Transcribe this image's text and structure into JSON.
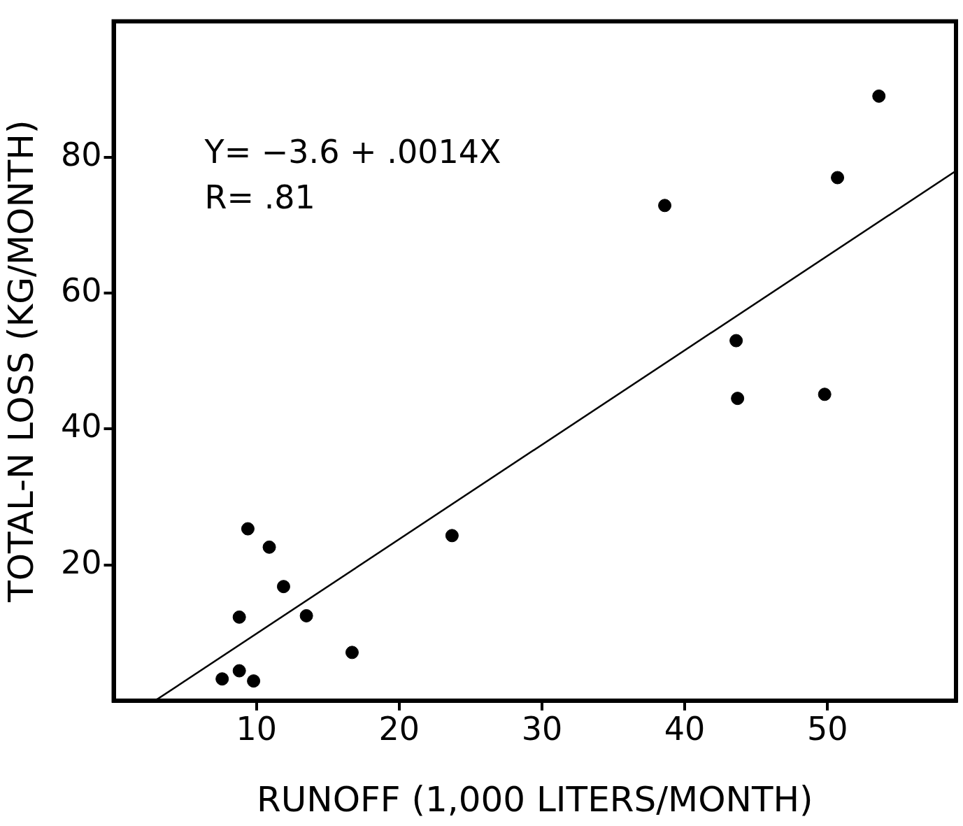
{
  "chart_data": {
    "type": "scatter",
    "xlabel": "RUNOFF (1,000 LITERS/MONTH)",
    "ylabel": "TOTAL-N LOSS (KG/MONTH)",
    "xlim": [
      0,
      59
    ],
    "ylim": [
      0,
      100
    ],
    "xticks": [
      10,
      20,
      30,
      40,
      50
    ],
    "yticks": [
      20,
      40,
      60,
      80
    ],
    "grid": false,
    "legend": false,
    "marker": "circle",
    "annotations": [
      "Y= −3.6 + .0014X",
      "R= .81"
    ],
    "series": [
      {
        "type": "scatter",
        "color": "#000000",
        "x": [
          7.6,
          8.8,
          9.8,
          8.8,
          9.4,
          10.9,
          11.9,
          13.5,
          16.7,
          23.7,
          38.6,
          43.6,
          43.7,
          49.8,
          50.7,
          53.6
        ],
        "values": [
          3.2,
          4.4,
          2.9,
          12.3,
          25.3,
          22.6,
          16.8,
          12.5,
          7.1,
          24.3,
          72.9,
          53,
          44.5,
          45.1,
          77,
          89
        ]
      },
      {
        "type": "line",
        "color": "#000000",
        "marker": "none",
        "x": [
          2.9,
          59
        ],
        "values": [
          0,
          78
        ]
      }
    ]
  }
}
